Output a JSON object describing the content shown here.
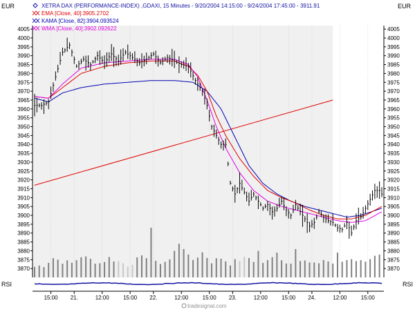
{
  "header": {
    "currency_left": "EUR",
    "currency_right": "EUR",
    "title": "XETRA DAX (PERFORMANCE-INDEX) ,GDAXI, 15 Minutes - 9/20/2004 14:15:00 - 9/24/2004 17:45:00 - 3911.91",
    "footer_logo": "tradesignal.com",
    "lower_panel_label": "RSI"
  },
  "colors": {
    "price": "#000000",
    "ema": "#e00000",
    "kama": "#0000b0",
    "wma": "#e000e0",
    "trendline": "#e00000",
    "volume": "#808080",
    "volume_highlight": "#c8c8c8",
    "shade": "#f0f0f0",
    "rsi": "#1010a0",
    "axis_text": "#000000"
  },
  "chart_data": {
    "type": "line",
    "title": "XETRA DAX (PERFORMANCE-INDEX) ,GDAXI, 15 Minutes - 9/20/2004 14:15:00 - 9/24/2004 17:45:00 - 3911.91",
    "ylim": [
      3865,
      4007
    ],
    "y_ticks": [
      4005,
      4000,
      3995,
      3990,
      3985,
      3980,
      3975,
      3970,
      3965,
      3960,
      3955,
      3950,
      3945,
      3940,
      3935,
      3930,
      3925,
      3920,
      3915,
      3910,
      3905,
      3900,
      3895,
      3890,
      3885,
      3880,
      3875,
      3870
    ],
    "x_tick_labels": [
      {
        "label": "15:00",
        "bar": 7
      },
      {
        "label": "21.",
        "bar": 17
      },
      {
        "label": "12:00",
        "bar": 29
      },
      {
        "label": "15:00",
        "bar": 41
      },
      {
        "label": "22.",
        "bar": 51
      },
      {
        "label": "12:00",
        "bar": 63
      },
      {
        "label": "15:00",
        "bar": 75
      },
      {
        "label": "23.",
        "bar": 85
      },
      {
        "label": "12:00",
        "bar": 97
      },
      {
        "label": "15:00",
        "bar": 109
      },
      {
        "label": "24.",
        "bar": 119
      },
      {
        "label": "12:00",
        "bar": 131
      },
      {
        "label": "15:00",
        "bar": 143
      }
    ],
    "bar_count": 150,
    "shaded_bar_range": [
      0,
      128
    ],
    "legend": [
      {
        "name": "XETRA DAX (PERFORMANCE-INDEX) ,GDAXI, 15 Minutes - 9/20/2004 14:15:00 - 9/24/2004 17:45:00 - 3911.91",
        "color": "#1010a0",
        "marker": "diamond"
      },
      {
        "name": "EMA [Close, 40]:3905.2702",
        "color": "#e00000",
        "marker": "x"
      },
      {
        "name": "KAMA [Close, 82]:3904.093524",
        "color": "#0000b0",
        "marker": "x"
      },
      {
        "name": "WMA [Close, 40]:3902.092622",
        "color": "#e000e0",
        "marker": "x"
      }
    ],
    "price_keypoints": [
      [
        0,
        3962
      ],
      [
        3,
        3962
      ],
      [
        6,
        3964
      ],
      [
        9,
        3978
      ],
      [
        12,
        3992
      ],
      [
        15,
        3996
      ],
      [
        18,
        3984
      ],
      [
        21,
        3988
      ],
      [
        24,
        3985
      ],
      [
        27,
        3990
      ],
      [
        30,
        3986
      ],
      [
        33,
        3991
      ],
      [
        36,
        3987
      ],
      [
        39,
        3992
      ],
      [
        42,
        3989
      ],
      [
        45,
        3986
      ],
      [
        48,
        3988
      ],
      [
        51,
        3991
      ],
      [
        54,
        3986
      ],
      [
        57,
        3989
      ],
      [
        60,
        3987
      ],
      [
        63,
        3985
      ],
      [
        66,
        3984
      ],
      [
        69,
        3976
      ],
      [
        72,
        3970
      ],
      [
        74,
        3962
      ],
      [
        76,
        3950
      ],
      [
        78,
        3945
      ],
      [
        80,
        3940
      ],
      [
        82,
        3940
      ],
      [
        84,
        3918
      ],
      [
        86,
        3912
      ],
      [
        88,
        3918
      ],
      [
        90,
        3913
      ],
      [
        92,
        3908
      ],
      [
        94,
        3912
      ],
      [
        96,
        3908
      ],
      [
        98,
        3904
      ],
      [
        100,
        3906
      ],
      [
        102,
        3902
      ],
      [
        104,
        3904
      ],
      [
        106,
        3908
      ],
      [
        108,
        3903
      ],
      [
        110,
        3900
      ],
      [
        112,
        3906
      ],
      [
        114,
        3902
      ],
      [
        116,
        3898
      ],
      [
        118,
        3894
      ],
      [
        120,
        3896
      ],
      [
        122,
        3902
      ],
      [
        124,
        3899
      ],
      [
        126,
        3897
      ],
      [
        128,
        3896
      ],
      [
        130,
        3893
      ],
      [
        132,
        3892
      ],
      [
        134,
        3896
      ],
      [
        136,
        3890
      ],
      [
        138,
        3897
      ],
      [
        140,
        3899
      ],
      [
        142,
        3904
      ],
      [
        144,
        3909
      ],
      [
        146,
        3914
      ],
      [
        148,
        3914
      ],
      [
        149,
        3912
      ]
    ],
    "ema_keypoints": [
      [
        0,
        3967
      ],
      [
        6,
        3966
      ],
      [
        12,
        3972
      ],
      [
        20,
        3980
      ],
      [
        30,
        3984
      ],
      [
        40,
        3986
      ],
      [
        50,
        3987
      ],
      [
        60,
        3987
      ],
      [
        66,
        3984
      ],
      [
        70,
        3979
      ],
      [
        74,
        3970
      ],
      [
        78,
        3956
      ],
      [
        82,
        3945
      ],
      [
        88,
        3932
      ],
      [
        94,
        3922
      ],
      [
        100,
        3914
      ],
      [
        106,
        3910
      ],
      [
        112,
        3907
      ],
      [
        118,
        3903
      ],
      [
        124,
        3900
      ],
      [
        130,
        3898
      ],
      [
        136,
        3898
      ],
      [
        142,
        3900
      ],
      [
        149,
        3905
      ]
    ],
    "kama_keypoints": [
      [
        0,
        3966
      ],
      [
        6,
        3964
      ],
      [
        12,
        3969
      ],
      [
        20,
        3972
      ],
      [
        30,
        3974
      ],
      [
        40,
        3975
      ],
      [
        50,
        3976
      ],
      [
        60,
        3976
      ],
      [
        68,
        3975
      ],
      [
        74,
        3970
      ],
      [
        80,
        3960
      ],
      [
        86,
        3944
      ],
      [
        92,
        3928
      ],
      [
        98,
        3918
      ],
      [
        104,
        3912
      ],
      [
        110,
        3908
      ],
      [
        116,
        3905
      ],
      [
        122,
        3903
      ],
      [
        128,
        3901
      ],
      [
        134,
        3899
      ],
      [
        140,
        3900
      ],
      [
        149,
        3904
      ]
    ],
    "wma_keypoints": [
      [
        0,
        3967
      ],
      [
        6,
        3966
      ],
      [
        12,
        3974
      ],
      [
        20,
        3983
      ],
      [
        30,
        3986
      ],
      [
        40,
        3987
      ],
      [
        50,
        3988
      ],
      [
        60,
        3988
      ],
      [
        66,
        3985
      ],
      [
        70,
        3978
      ],
      [
        74,
        3965
      ],
      [
        78,
        3950
      ],
      [
        82,
        3938
      ],
      [
        88,
        3924
      ],
      [
        94,
        3914
      ],
      [
        100,
        3908
      ],
      [
        106,
        3905
      ],
      [
        112,
        3903
      ],
      [
        118,
        3901
      ],
      [
        124,
        3899
      ],
      [
        130,
        3897
      ],
      [
        136,
        3896
      ],
      [
        142,
        3897
      ],
      [
        149,
        3902
      ]
    ],
    "trendline": [
      [
        0,
        3917
      ],
      [
        128,
        3965
      ]
    ],
    "volume_keypoints": [
      [
        0,
        3871
      ],
      [
        4,
        3872
      ],
      [
        8,
        3876
      ],
      [
        12,
        3874
      ],
      [
        16,
        3873
      ],
      [
        20,
        3877
      ],
      [
        24,
        3875
      ],
      [
        28,
        3873
      ],
      [
        32,
        3876
      ],
      [
        36,
        3874
      ],
      [
        40,
        3872
      ],
      [
        44,
        3875
      ],
      [
        48,
        3877
      ],
      [
        52,
        3873
      ],
      [
        56,
        3874
      ],
      [
        60,
        3876
      ],
      [
        64,
        3878
      ],
      [
        68,
        3875
      ],
      [
        72,
        3879
      ],
      [
        76,
        3874
      ],
      [
        80,
        3876
      ],
      [
        84,
        3873
      ],
      [
        88,
        3875
      ],
      [
        92,
        3876
      ],
      [
        96,
        3873
      ],
      [
        100,
        3874
      ],
      [
        104,
        3878
      ],
      [
        108,
        3873
      ],
      [
        112,
        3875
      ],
      [
        116,
        3874
      ],
      [
        120,
        3872
      ],
      [
        124,
        3875
      ],
      [
        128,
        3873
      ],
      [
        132,
        3874
      ],
      [
        136,
        3876
      ],
      [
        140,
        3874
      ],
      [
        144,
        3876
      ],
      [
        149,
        3877
      ]
    ],
    "volume_spikes": [
      [
        50,
        3893
      ],
      [
        62,
        3884
      ],
      [
        64,
        3881
      ],
      [
        60,
        3880
      ],
      [
        96,
        3880
      ],
      [
        112,
        3881
      ],
      [
        104,
        3879
      ],
      [
        130,
        3879
      ]
    ],
    "volume_base": 3865
  }
}
